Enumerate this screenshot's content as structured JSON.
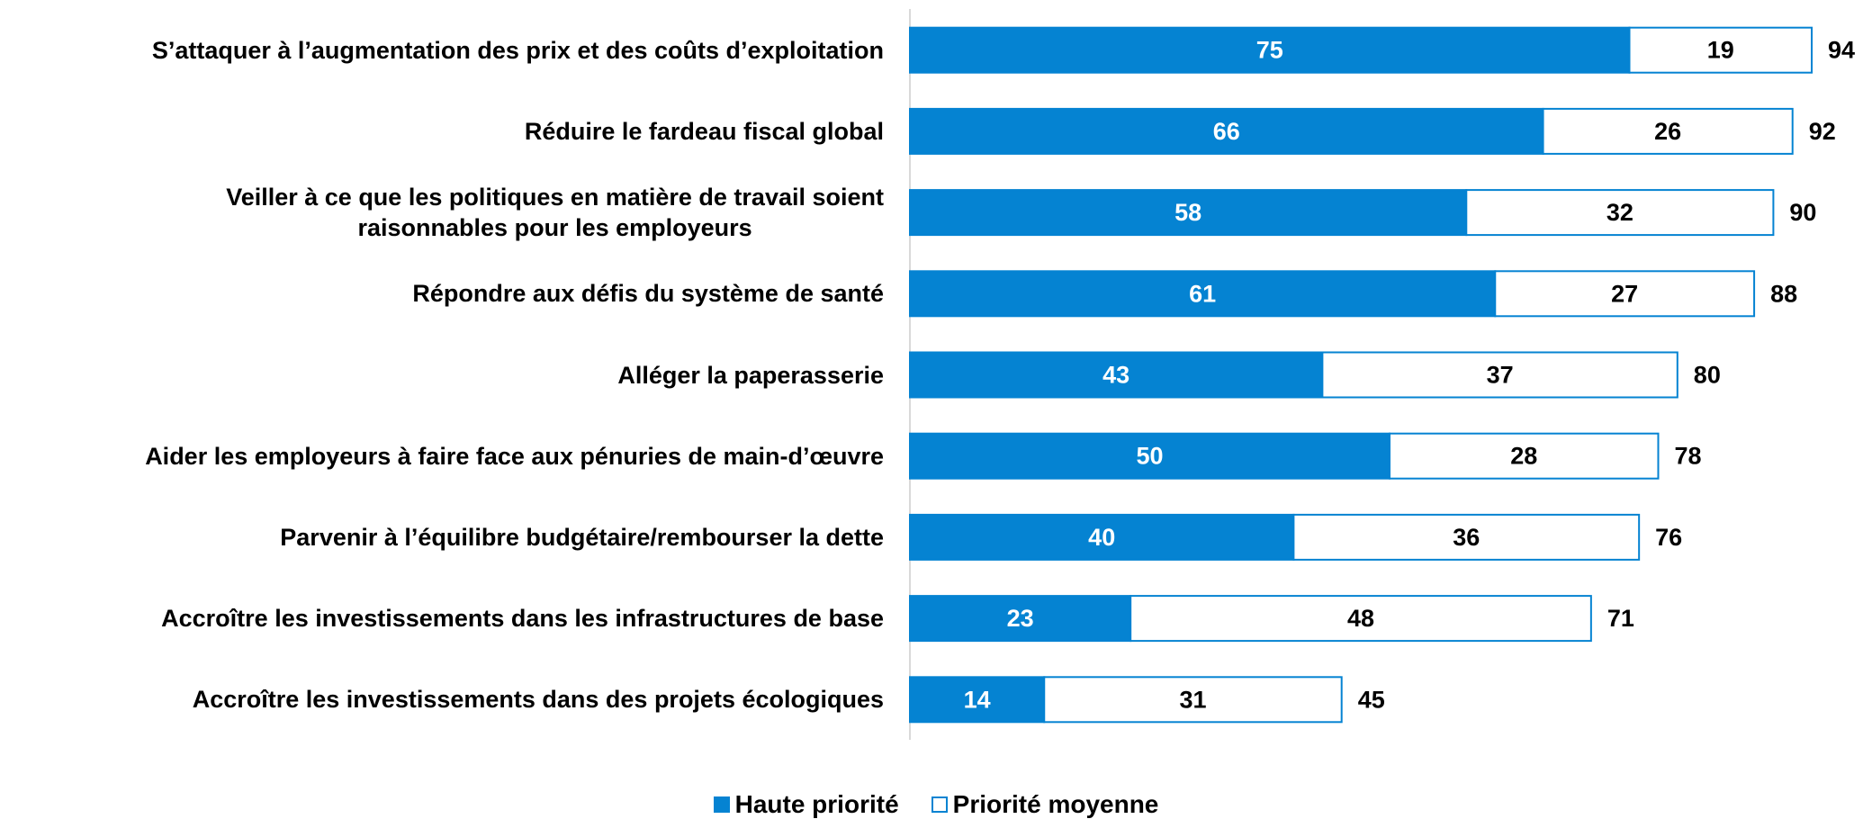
{
  "chart_data": {
    "type": "stacked-barh",
    "categories": [
      "S’attaquer à l’augmentation des prix et des coûts d’exploitation",
      "Réduire le fardeau fiscal global",
      "Veiller à ce que les politiques en matière de travail soient\nraisonnables pour les employeurs",
      "Répondre aux défis du système de santé",
      "Alléger la paperasserie",
      "Aider les employeurs à faire face aux pénuries de main-d’œuvre",
      "Parvenir à l’équilibre budgétaire/rembourser la dette",
      "Accroître les investissements dans les infrastructures de base",
      "Accroître les investissements dans des projets écologiques"
    ],
    "series": [
      {
        "name": "Haute priorité",
        "color": "#0583d2",
        "values": [
          75,
          66,
          58,
          61,
          43,
          50,
          40,
          23,
          14
        ]
      },
      {
        "name": "Priorité moyenne",
        "color": "#ffffff",
        "values": [
          19,
          26,
          32,
          27,
          37,
          28,
          36,
          48,
          31
        ]
      }
    ],
    "totals": [
      94,
      92,
      90,
      88,
      80,
      78,
      76,
      71,
      45
    ],
    "xlim": [
      0,
      100
    ],
    "legend": "bottom"
  }
}
